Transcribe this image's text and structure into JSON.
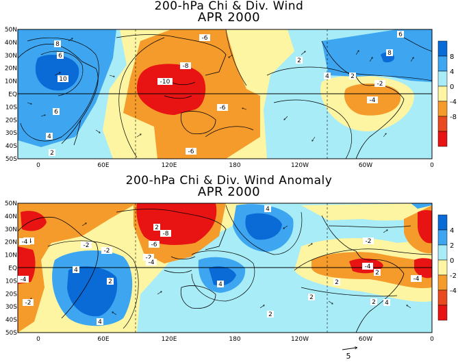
{
  "panels": [
    {
      "title": "200-hPa Chi & Div. Wind",
      "subtitle": "APR 2000",
      "lat_labels": [
        "50N",
        "40N",
        "30N",
        "20N",
        "10N",
        "EQ",
        "10S",
        "20S",
        "30S",
        "40S",
        "50S"
      ],
      "lon_labels": [
        "0",
        "60E",
        "120E",
        "180",
        "120W",
        "60W",
        "0"
      ],
      "colorbar": {
        "labels": [
          "8",
          "4",
          "0",
          "-4",
          "-8"
        ],
        "colors": [
          "#0a6ad6",
          "#3ea6f0",
          "#a8ecf8",
          "#fdf5a2",
          "#f59b2b",
          "#ea4a1f",
          "#e81414"
        ]
      },
      "contour_labels": [
        "-6",
        "8",
        "6",
        "10",
        "6",
        "4",
        "2",
        "-8",
        "-10",
        "-6",
        "-6",
        "6",
        "2",
        "4",
        "2",
        "-2",
        "-4",
        "8"
      ]
    },
    {
      "title": "200-hPa Chi & Div. Wind Anomaly",
      "subtitle": "APR 2000",
      "lat_labels": [
        "50N",
        "40N",
        "30N",
        "20N",
        "10N",
        "EQ",
        "10S",
        "20S",
        "30S",
        "40S",
        "50S"
      ],
      "lon_labels": [
        "0",
        "60E",
        "120E",
        "180",
        "120W",
        "60W",
        "0"
      ],
      "colorbar": {
        "labels": [
          "4",
          "2",
          "0",
          "-2",
          "-4"
        ],
        "colors": [
          "#0a6ad6",
          "#3ea6f0",
          "#a8ecf8",
          "#fdf5a2",
          "#f59b2b",
          "#ea4a1f",
          "#e81414"
        ]
      },
      "contour_labels": [
        "-4",
        "-4",
        "-2",
        "-2",
        "2",
        "4",
        "4",
        "2",
        "-8",
        "-6",
        "-2",
        "-4",
        "4",
        "4",
        "2",
        "-2",
        "-4",
        "2",
        "-4",
        "2",
        "2",
        "-2",
        "-4",
        "2",
        "4"
      ]
    }
  ],
  "vector_reference": "5"
}
